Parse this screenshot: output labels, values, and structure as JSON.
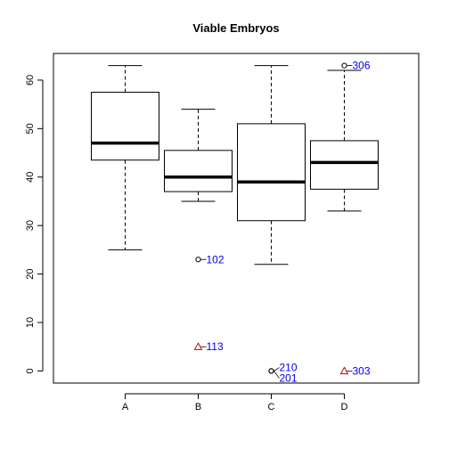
{
  "chart_data": {
    "type": "box",
    "title": "Viable Embryos",
    "xlabel": "",
    "ylabel": "",
    "ylim": [
      -2.5,
      65.5
    ],
    "y_ticks": [
      0,
      10,
      20,
      30,
      40,
      50,
      60
    ],
    "y_tick_labels": [
      "0",
      "10",
      "20",
      "30",
      "40",
      "50",
      "60"
    ],
    "grid": false,
    "categories": [
      "A",
      "B",
      "C",
      "D"
    ],
    "boxes": [
      {
        "category": "A",
        "whisker_low": 25,
        "q1": 43.5,
        "median": 47,
        "q3": 57.5,
        "whisker_high": 63
      },
      {
        "category": "B",
        "whisker_low": 35,
        "q1": 37,
        "median": 40,
        "q3": 45.5,
        "whisker_high": 54
      },
      {
        "category": "C",
        "whisker_low": 22,
        "q1": 31,
        "median": 39,
        "q3": 51,
        "whisker_high": 63
      },
      {
        "category": "D",
        "whisker_low": 33,
        "q1": 37.5,
        "median": 43,
        "q3": 47.5,
        "whisker_high": 62
      }
    ],
    "outliers": [
      {
        "category": "B",
        "y": 23,
        "marker": "circle",
        "color": "#000000",
        "label": "102"
      },
      {
        "category": "B",
        "y": 5,
        "marker": "triangle",
        "color": "#cc0000",
        "label": "113"
      },
      {
        "category": "C",
        "y": 0,
        "marker": "circle",
        "color": "#000000",
        "label": "210",
        "label_y": 0.7
      },
      {
        "category": "C",
        "y": 0,
        "marker": "circle",
        "color": "#000000",
        "label": "201",
        "label_y": -1.5
      },
      {
        "category": "D",
        "y": 63,
        "marker": "circle",
        "color": "#000000",
        "label": "306"
      },
      {
        "category": "D",
        "y": 0,
        "marker": "triangle",
        "color": "#cc0000",
        "label": "303"
      }
    ],
    "label_color": "#0000ee"
  }
}
